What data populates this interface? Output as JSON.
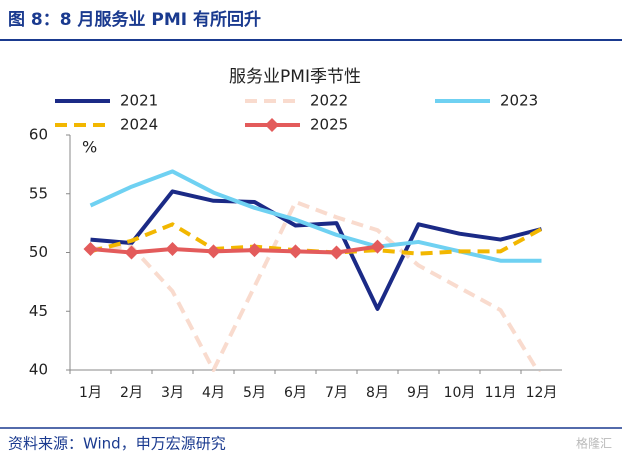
{
  "header": {
    "title": "图 8：8 月服务业 PMI 有所回升"
  },
  "chart_data": {
    "type": "line",
    "title": "服务业PMI季节性",
    "y_unit": "%",
    "categories": [
      "1月",
      "2月",
      "3月",
      "4月",
      "5月",
      "6月",
      "7月",
      "8月",
      "9月",
      "10月",
      "11月",
      "12月"
    ],
    "ylim": [
      40,
      60
    ],
    "yticks": [
      40,
      45,
      50,
      55,
      60
    ],
    "grid": false,
    "series": [
      {
        "name": "2021",
        "color": "#1b2a86",
        "style": "solid",
        "values": [
          51.1,
          50.8,
          55.2,
          54.4,
          54.3,
          52.3,
          52.5,
          45.2,
          52.4,
          51.6,
          51.1,
          52.0
        ]
      },
      {
        "name": "2022",
        "color": "#f9dbce",
        "style": "dashed",
        "values": [
          50.3,
          50.5,
          46.7,
          40.0,
          47.1,
          54.3,
          53.0,
          51.9,
          48.9,
          47.0,
          45.1,
          39.4
        ]
      },
      {
        "name": "2023",
        "color": "#6fd1f2",
        "style": "solid",
        "values": [
          54.0,
          55.6,
          56.9,
          55.1,
          53.8,
          52.8,
          51.5,
          50.5,
          50.9,
          50.1,
          49.3,
          49.3
        ]
      },
      {
        "name": "2024",
        "color": "#f2b700",
        "style": "dashed",
        "values": [
          50.1,
          51.0,
          52.4,
          50.3,
          50.5,
          50.2,
          50.0,
          50.2,
          49.9,
          50.1,
          50.1,
          52.0
        ]
      },
      {
        "name": "2025",
        "color": "#e35b5b",
        "style": "solid",
        "marker": "diamond",
        "values": [
          50.3,
          50.0,
          50.3,
          50.1,
          50.2,
          50.1,
          50.0,
          50.5,
          null,
          null,
          null,
          null
        ]
      }
    ]
  },
  "footer": {
    "source": "资料来源：Wind，申万宏源研究",
    "watermark": "格隆汇"
  }
}
